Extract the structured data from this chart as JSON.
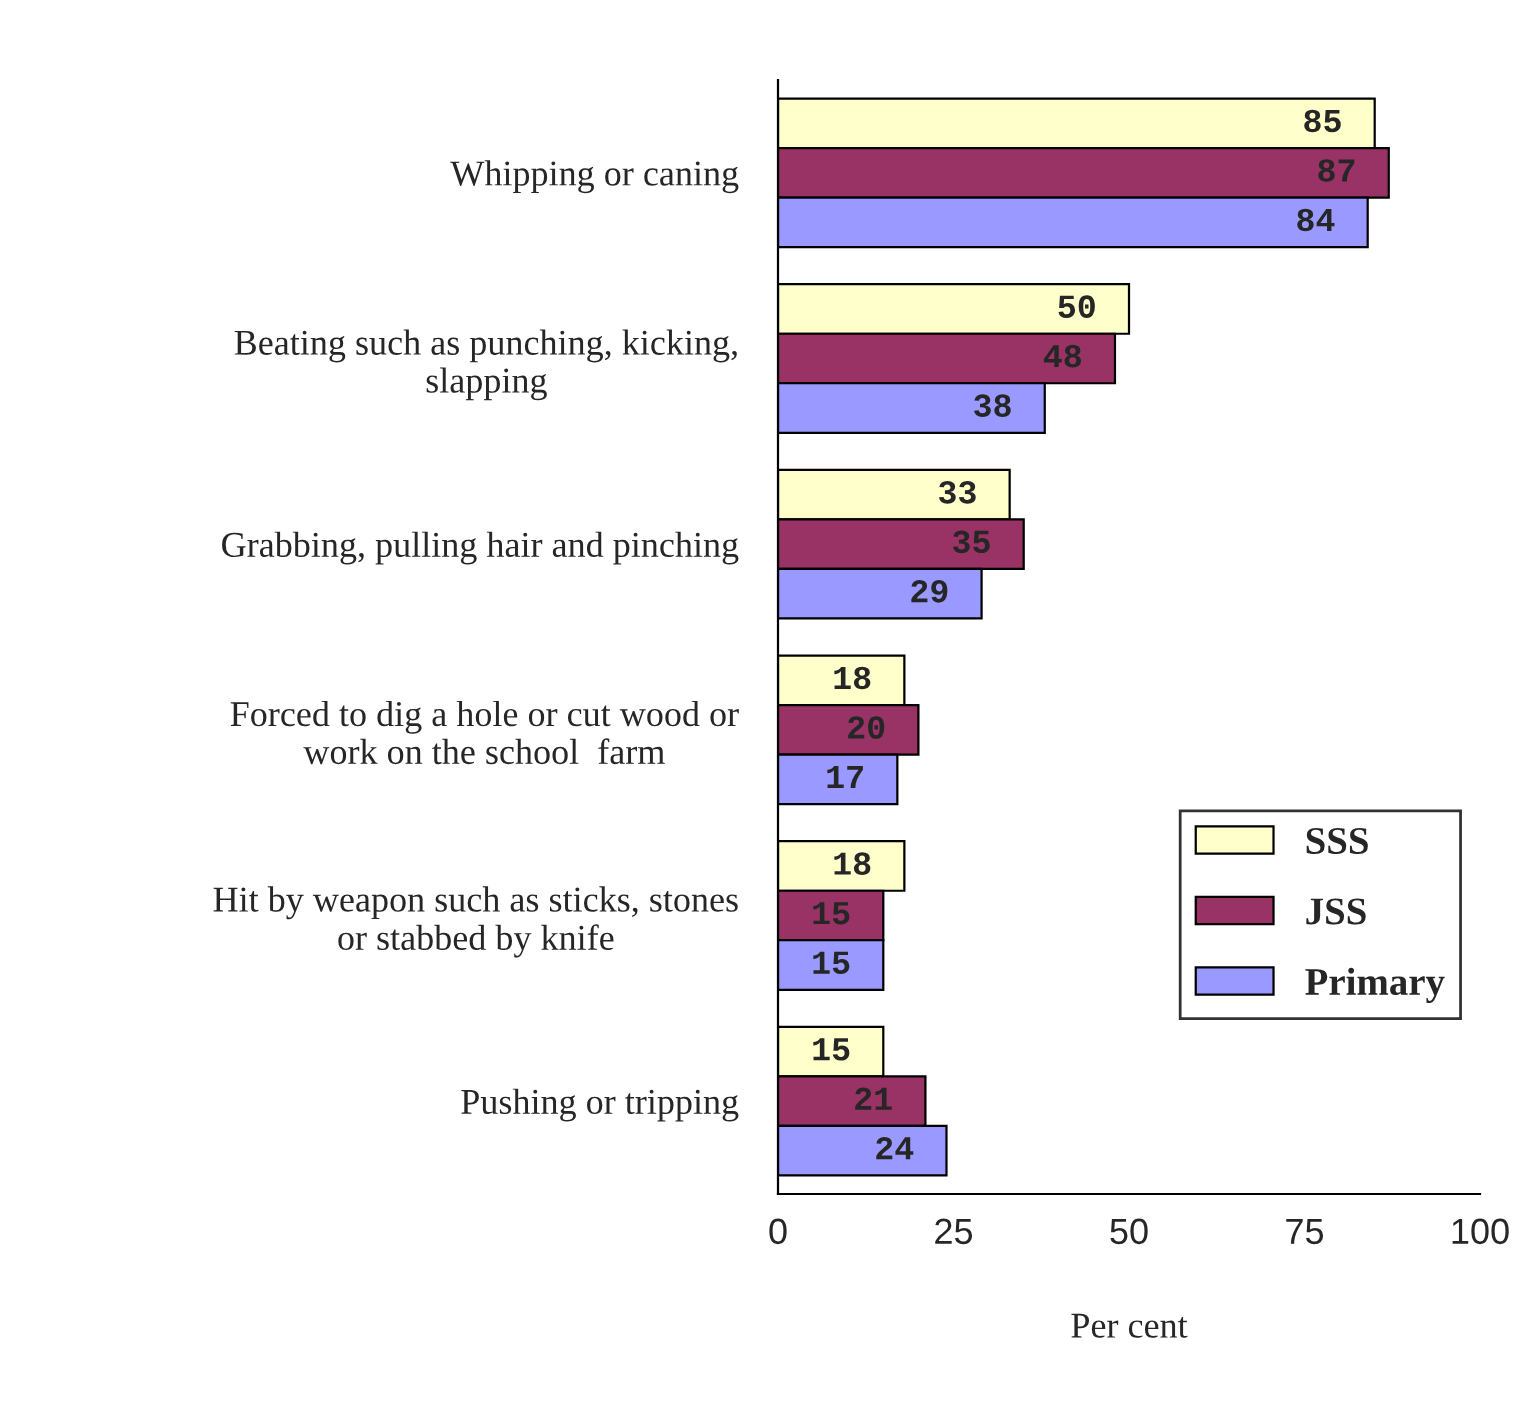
{
  "chart_data": {
    "type": "bar",
    "orientation": "horizontal",
    "xlabel": "Per cent",
    "categories": [
      "Whipping or caning",
      "Beating such as punching, kicking,\nslapping",
      "Grabbing, pulling hair and pinching",
      "Forced to dig a hole or cut wood or\nwork on the school  farm",
      "Hit by weapon such as sticks, stones\nor stabbed by knife",
      "Pushing or tripping"
    ],
    "series": [
      {
        "name": "SSS",
        "color": "#ffffcc",
        "values": [
          85,
          50,
          33,
          18,
          18,
          15
        ]
      },
      {
        "name": "JSS",
        "color": "#993366",
        "values": [
          87,
          48,
          35,
          20,
          15,
          21
        ]
      },
      {
        "name": "Primary",
        "color": "#9999ff",
        "values": [
          84,
          38,
          29,
          17,
          15,
          24
        ]
      }
    ],
    "xlim": [
      0,
      100
    ],
    "xticks": [
      0,
      25,
      50,
      75,
      100
    ],
    "grid": false,
    "legend": "bottom right",
    "data_labels": true
  }
}
